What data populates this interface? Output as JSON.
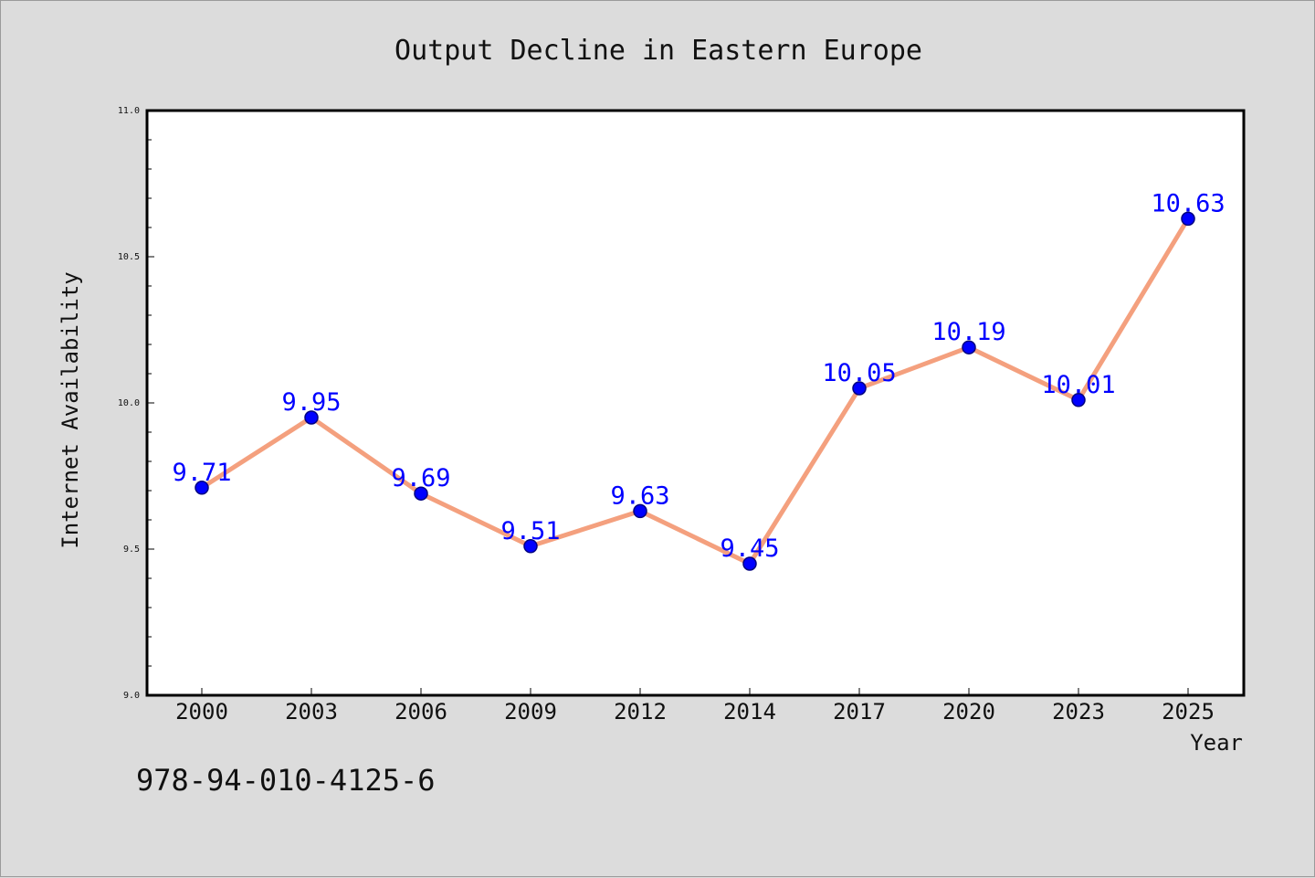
{
  "colors": {
    "background": "#dcdcdc",
    "plot_background": "#ffffff",
    "line": "#f4a07e",
    "marker": "#0000ff",
    "marker_edge": "#000080",
    "data_label": "#0000ff"
  },
  "footer_text": "978-94-010-4125-6",
  "chart_data": {
    "type": "line",
    "title": "Output Decline in Eastern Europe",
    "xlabel": "Year",
    "ylabel": "Internet Availability",
    "categories": [
      "2000",
      "2003",
      "2006",
      "2009",
      "2012",
      "2014",
      "2017",
      "2020",
      "2023",
      "2025"
    ],
    "series": [
      {
        "values": [
          9.71,
          9.95,
          9.69,
          9.51,
          9.63,
          9.45,
          10.05,
          10.19,
          10.01,
          10.63
        ],
        "data_labels": [
          "9.71",
          "9.95",
          "9.69",
          "9.51",
          "9.63",
          "9.45",
          "10.05",
          "10.19",
          "10.01",
          "10.63"
        ]
      }
    ],
    "ylim": [
      9.0,
      11.0
    ],
    "yticks": [
      "9.0",
      "9.5",
      "10.0",
      "10.5",
      "11.0"
    ],
    "y_minor_step": 0.1,
    "grid": false,
    "legend": "none"
  }
}
